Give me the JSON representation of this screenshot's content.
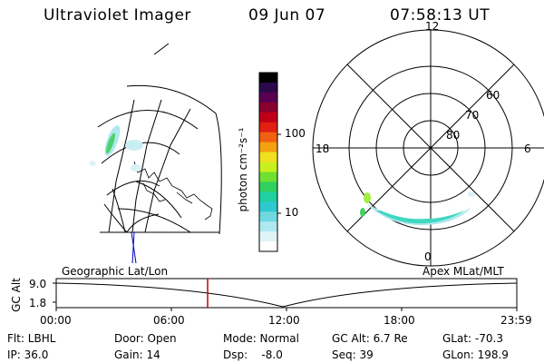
{
  "header": {
    "instrument": "Ultraviolet Imager",
    "date": "09 Jun 07",
    "time": "07:58:13 UT"
  },
  "colorbar": {
    "unit_label": "photon cm⁻²s⁻¹",
    "ticks": [
      "100",
      "10"
    ],
    "colors": [
      "#000000",
      "#2a0a4a",
      "#5a0050",
      "#8a0030",
      "#c00018",
      "#e02010",
      "#f06010",
      "#f5a010",
      "#f0e020",
      "#c8f020",
      "#70e030",
      "#30d060",
      "#20d0a0",
      "#30c8d0",
      "#70d8e0",
      "#b0e8f0",
      "#e0f4f8",
      "#ffffff"
    ]
  },
  "polar": {
    "mlt_labels": {
      "top": "12",
      "left": "18",
      "right": "6",
      "bottom": "0"
    },
    "lat_labels": [
      "60",
      "70",
      "80"
    ]
  },
  "timeline": {
    "y_label": "GC Alt",
    "y_ticks": [
      "9.0",
      "1.8"
    ],
    "left_label": "Geographic Lat/Lon",
    "right_label": "Apex MLat/MLT",
    "x_ticks": [
      "00:00",
      "06:00",
      "12:00",
      "18:00",
      "23:59"
    ]
  },
  "info": {
    "flt": "Flt: LBHL",
    "door": "Door: Open",
    "mode": "Mode: Normal",
    "gc_alt": "GC Alt: 6.7 Re",
    "glat": "GLat: -70.3",
    "ip": "IP: 36.0",
    "gain": "Gain: 14",
    "dsp": "Dsp:    -8.0",
    "seq": "Seq: 39",
    "glon": "GLon: 198.9"
  }
}
